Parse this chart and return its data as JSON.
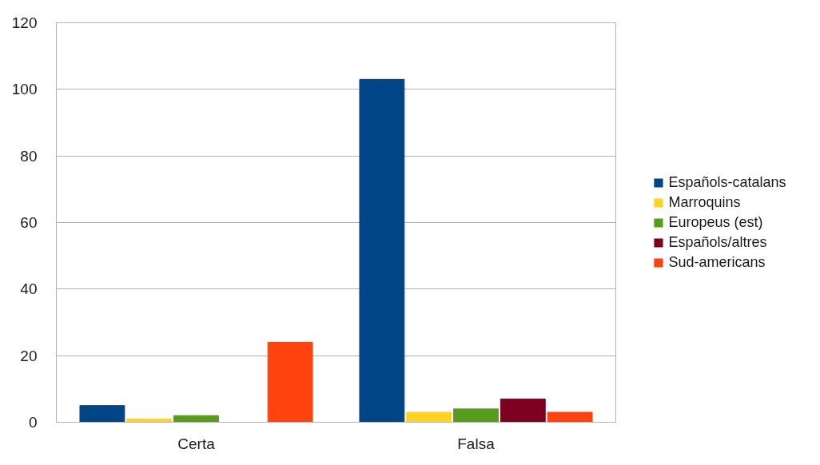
{
  "chart_data": {
    "type": "bar",
    "categories": [
      "Certa",
      "Falsa"
    ],
    "series": [
      {
        "name": "Españols-catalans",
        "color": "#004586",
        "values": [
          5,
          103
        ]
      },
      {
        "name": "Marroquins",
        "color": "#ffd320",
        "values": [
          1,
          3
        ]
      },
      {
        "name": "Europeus (est)",
        "color": "#579d1c",
        "values": [
          2,
          4
        ]
      },
      {
        "name": "Españols/altres",
        "color": "#7e0021",
        "values": [
          null,
          7
        ]
      },
      {
        "name": "Sud-americans",
        "color": "#ff420e",
        "values": [
          24,
          3
        ]
      }
    ],
    "ylim": [
      0,
      120
    ],
    "yticks": [
      0,
      20,
      40,
      60,
      80,
      100,
      120
    ],
    "grid": "y",
    "legend": "right"
  }
}
